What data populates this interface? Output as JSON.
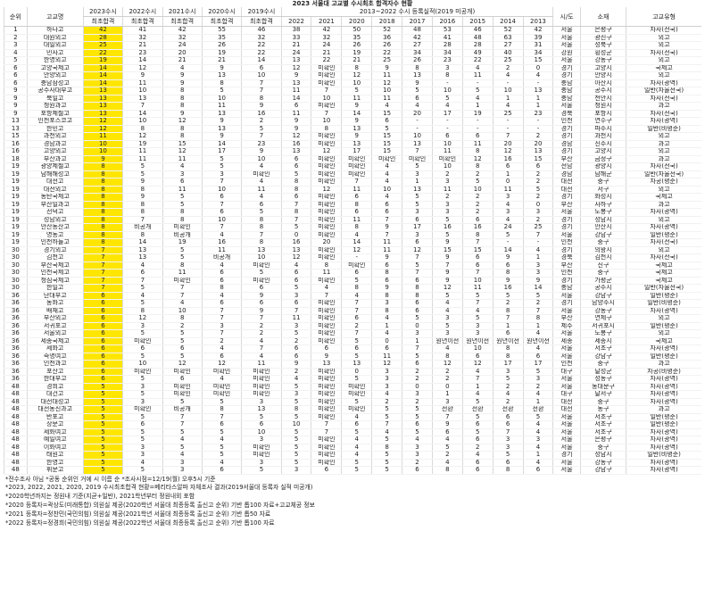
{
  "title": "2023 서울대 고교별 수시최초 합격자수 현황",
  "headers": {
    "rank": "순위",
    "school": "고교명",
    "y2023": [
      "2023수시",
      "최초합격"
    ],
    "y2022": [
      "2022수시",
      "최초합격"
    ],
    "y2021": [
      "2021수시",
      "최초합격"
    ],
    "y2020": [
      "2020수시",
      "최초합격"
    ],
    "y2019": [
      "2019수시",
      "최초합격"
    ],
    "reg_group": "2013~2022 수시 등록실적(2019 미공개)",
    "reg_years": [
      "2022",
      "2021",
      "2020",
      "2018",
      "2017",
      "2016",
      "2015",
      "2014",
      "2013"
    ],
    "region": "시/도",
    "location": "소재",
    "type": "고교유형"
  },
  "highlight_color": "#ffe600",
  "rows": [
    [
      "1",
      "하나고",
      "42",
      "41",
      "42",
      "55",
      "46",
      "38",
      "42",
      "50",
      "52",
      "48",
      "53",
      "46",
      "52",
      "42",
      "서울",
      "은평구",
      "자사(전국)"
    ],
    [
      "2",
      "대원외고",
      "28",
      "32",
      "32",
      "35",
      "32",
      "33",
      "32",
      "35",
      "36",
      "42",
      "41",
      "48",
      "63",
      "39",
      "서울",
      "광진구",
      "외고"
    ],
    [
      "3",
      "대일외고",
      "25",
      "21",
      "24",
      "26",
      "22",
      "21",
      "24",
      "26",
      "26",
      "27",
      "28",
      "28",
      "27",
      "31",
      "서울",
      "성북구",
      "외고"
    ],
    [
      "4",
      "민사고",
      "22",
      "23",
      "20",
      "19",
      "22",
      "24",
      "21",
      "19",
      "22",
      "34",
      "34",
      "49",
      "40",
      "34",
      "강원",
      "횡성군",
      "자사(전국)"
    ],
    [
      "5",
      "한영외고",
      "19",
      "14",
      "21",
      "21",
      "14",
      "13",
      "22",
      "21",
      "25",
      "26",
      "23",
      "22",
      "25",
      "15",
      "서울",
      "강동구",
      "외고"
    ],
    [
      "6",
      "고양국제고",
      "14",
      "12",
      "4",
      "9",
      "6",
      "12",
      "미확인",
      "8",
      "9",
      "8",
      "3",
      "4",
      "2",
      "0",
      "경기",
      "고양시",
      "국제고"
    ],
    [
      "6",
      "안양외고",
      "14",
      "9",
      "9",
      "13",
      "10",
      "9",
      "미확인",
      "12",
      "11",
      "13",
      "8",
      "11",
      "4",
      "4",
      "경기",
      "안양시",
      "외고"
    ],
    [
      "6",
      "충남삼성고",
      "14",
      "11",
      "9",
      "8",
      "7",
      "13",
      "미확인",
      "10",
      "12",
      "9",
      "-",
      "-",
      "-",
      "-",
      "충남",
      "아산시",
      "자사(광역)"
    ],
    [
      "9",
      "공주사대부고",
      "13",
      "10",
      "8",
      "5",
      "7",
      "11",
      "7",
      "5",
      "10",
      "5",
      "10",
      "5",
      "10",
      "13",
      "충남",
      "공주시",
      "일반(자율전국)"
    ],
    [
      "9",
      "북일고",
      "13",
      "13",
      "8",
      "10",
      "8",
      "14",
      "10",
      "11",
      "11",
      "6",
      "5",
      "4",
      "1",
      "1",
      "충남",
      "천안시",
      "자사(전국)"
    ],
    [
      "9",
      "청원과고",
      "13",
      "7",
      "8",
      "11",
      "9",
      "6",
      "미확인",
      "9",
      "4",
      "4",
      "4",
      "1",
      "4",
      "1",
      "서울",
      "청원시",
      "과고"
    ],
    [
      "9",
      "포항제철고",
      "13",
      "14",
      "9",
      "13",
      "16",
      "11",
      "7",
      "14",
      "15",
      "20",
      "17",
      "19",
      "25",
      "23",
      "경북",
      "포항시",
      "자사(전국)"
    ],
    [
      "13",
      "인천포스코고",
      "12",
      "10",
      "12",
      "9",
      "2",
      "9",
      "10",
      "9",
      "6",
      "-",
      "-",
      "-",
      "-",
      "-",
      "인천",
      "연수구",
      "자사(광역)"
    ],
    [
      "13",
      "한민고",
      "12",
      "8",
      "8",
      "13",
      "5",
      "9",
      "8",
      "13",
      "5",
      "-",
      "-",
      "-",
      "-",
      "-",
      "경기",
      "파주시",
      "일반(비평준)"
    ],
    [
      "15",
      "과천외고",
      "11",
      "12",
      "8",
      "9",
      "7",
      "12",
      "미확인",
      "9",
      "15",
      "10",
      "6",
      "6",
      "7",
      "2",
      "경기",
      "과천시",
      "외고"
    ],
    [
      "16",
      "경남과고",
      "10",
      "19",
      "15",
      "14",
      "23",
      "16",
      "미확인",
      "13",
      "15",
      "13",
      "10",
      "11",
      "20",
      "20",
      "경남",
      "진주시",
      "과고"
    ],
    [
      "16",
      "고양외고",
      "10",
      "11",
      "12",
      "17",
      "9",
      "13",
      "12",
      "17",
      "15",
      "7",
      "11",
      "8",
      "12",
      "13",
      "경기",
      "고양시",
      "외고"
    ],
    [
      "18",
      "부산과고",
      "9",
      "11",
      "11",
      "5",
      "10",
      "6",
      "미확인",
      "미확인",
      "미확인",
      "미확인",
      "미확인",
      "12",
      "16",
      "15",
      "부산",
      "금정구",
      "과고"
    ],
    [
      "19",
      "광양제철고",
      "8",
      "5",
      "4",
      "5",
      "4",
      "6",
      "미확인",
      "미확인",
      "4",
      "5",
      "10",
      "8",
      "6",
      "6",
      "전남",
      "광양시",
      "자사(전국)"
    ],
    [
      "19",
      "남해해성고",
      "8",
      "5",
      "3",
      "3",
      "미확인",
      "5",
      "미확인",
      "미확인",
      "4",
      "3",
      "2",
      "2",
      "1",
      "2",
      "경남",
      "남해군",
      "일반(자율전국)"
    ],
    [
      "19",
      "대전고",
      "8",
      "9",
      "6",
      "7",
      "4",
      "8",
      "미확인",
      "7",
      "4",
      "1",
      "3",
      "5",
      "0",
      "2",
      "대전",
      "중구",
      "자공(평준)"
    ],
    [
      "19",
      "대전외고",
      "8",
      "8",
      "11",
      "10",
      "11",
      "8",
      "12",
      "11",
      "10",
      "13",
      "11",
      "10",
      "11",
      "5",
      "대전",
      "서구",
      "외고"
    ],
    [
      "19",
      "동탄국제고",
      "8",
      "9",
      "5",
      "6",
      "4",
      "6",
      "미확인",
      "6",
      "4",
      "5",
      "2",
      "2",
      "3",
      "2",
      "경기",
      "화성시",
      "국제고"
    ],
    [
      "19",
      "부산일과고",
      "8",
      "8",
      "5",
      "7",
      "6",
      "7",
      "미확인",
      "8",
      "6",
      "5",
      "3",
      "2",
      "4",
      "0",
      "부산",
      "사하구",
      "과고"
    ],
    [
      "19",
      "선덕고",
      "8",
      "8",
      "8",
      "6",
      "5",
      "8",
      "미확인",
      "6",
      "6",
      "3",
      "3",
      "2",
      "3",
      "3",
      "서울",
      "도봉구",
      "자사(광역)"
    ],
    [
      "19",
      "성남외고",
      "8",
      "7",
      "8",
      "10",
      "8",
      "7",
      "미확인",
      "11",
      "7",
      "6",
      "5",
      "6",
      "4",
      "2",
      "경기",
      "성남시",
      "외고"
    ],
    [
      "19",
      "안산동산고",
      "8",
      "비공개",
      "미확인",
      "7",
      "8",
      "5",
      "미확인",
      "8",
      "9",
      "17",
      "16",
      "16",
      "24",
      "25",
      "경기",
      "안산시",
      "자사(광역)"
    ],
    [
      "19",
      "영동고",
      "8",
      "8",
      "비공개",
      "4",
      "7",
      "0",
      "미확인",
      "4",
      "7",
      "3",
      "5",
      "8",
      "5",
      "7",
      "서울",
      "강남구",
      "일반(평준)"
    ],
    [
      "19",
      "인천하늘고",
      "8",
      "14",
      "19",
      "16",
      "8",
      "16",
      "20",
      "14",
      "11",
      "6",
      "9",
      "7",
      "-",
      "-",
      "인천",
      "중구",
      "자사(전국)"
    ],
    [
      "30",
      "경기외고",
      "7",
      "13",
      "5",
      "11",
      "13",
      "13",
      "미확인",
      "12",
      "11",
      "12",
      "15",
      "15",
      "14",
      "4",
      "경기",
      "의왕시",
      "외고"
    ],
    [
      "30",
      "김천고",
      "7",
      "13",
      "5",
      "비공개",
      "10",
      "12",
      "미확인",
      "-",
      "9",
      "7",
      "9",
      "6",
      "9",
      "1",
      "경북",
      "김천시",
      "자사(전국)"
    ],
    [
      "30",
      "부산국제고",
      "7",
      "4",
      "8",
      "4",
      "미확인",
      "4",
      "8",
      "미확인",
      "6",
      "5",
      "7",
      "6",
      "6",
      "3",
      "부산",
      "진구",
      "국제고"
    ],
    [
      "30",
      "인천국제고",
      "7",
      "6",
      "11",
      "6",
      "5",
      "6",
      "11",
      "6",
      "8",
      "7",
      "9",
      "7",
      "8",
      "3",
      "인천",
      "중구",
      "국제고"
    ],
    [
      "30",
      "청심국제고",
      "7",
      "7",
      "미확인",
      "6",
      "미확인",
      "6",
      "미확인",
      "5",
      "6",
      "6",
      "9",
      "10",
      "9",
      "9",
      "경기",
      "가평군",
      "국제고"
    ],
    [
      "30",
      "한일고",
      "7",
      "5",
      "7",
      "8",
      "6",
      "5",
      "4",
      "8",
      "9",
      "8",
      "12",
      "11",
      "16",
      "14",
      "충남",
      "공주시",
      "일반(자율전국)"
    ],
    [
      "36",
      "단대부고",
      "6",
      "4",
      "7",
      "4",
      "9",
      "3",
      "7",
      "4",
      "8",
      "8",
      "5",
      "5",
      "5",
      "5",
      "서울",
      "강남구",
      "일반(평준)"
    ],
    [
      "36",
      "동화고",
      "6",
      "5",
      "4",
      "6",
      "6",
      "6",
      "미확인",
      "7",
      "3",
      "6",
      "4",
      "7",
      "2",
      "2",
      "경기",
      "남양주시",
      "일반(비평준)"
    ],
    [
      "36",
      "배재고",
      "6",
      "8",
      "10",
      "7",
      "9",
      "7",
      "미확인",
      "7",
      "8",
      "6",
      "4",
      "4",
      "8",
      "7",
      "서울",
      "강동구",
      "자사(광역)"
    ],
    [
      "36",
      "부산외고",
      "6",
      "12",
      "8",
      "7",
      "7",
      "11",
      "미확인",
      "6",
      "4",
      "5",
      "3",
      "5",
      "7",
      "8",
      "부산",
      "연제구",
      "외고"
    ],
    [
      "36",
      "서귀포고",
      "6",
      "3",
      "2",
      "3",
      "2",
      "3",
      "미확인",
      "2",
      "1",
      "0",
      "5",
      "3",
      "1",
      "1",
      "제주",
      "서귀포시",
      "일반(평준)"
    ],
    [
      "36",
      "서울외고",
      "6",
      "5",
      "5",
      "7",
      "2",
      "5",
      "미확인",
      "7",
      "4",
      "3",
      "3",
      "3",
      "6",
      "4",
      "서울",
      "도봉구",
      "외고"
    ],
    [
      "36",
      "세종국제고",
      "6",
      "미확인",
      "5",
      "2",
      "4",
      "2",
      "미확인",
      "5",
      "0",
      "1",
      "원년이전",
      "원년이전",
      "원년이전",
      "원년이전",
      "세종",
      "세종시",
      "국제고"
    ],
    [
      "36",
      "세화고",
      "6",
      "6",
      "6",
      "4",
      "7",
      "6",
      "6",
      "6",
      "6",
      "7",
      "4",
      "10",
      "8",
      "4",
      "서울",
      "서초구",
      "자사(광역)"
    ],
    [
      "36",
      "숙명여고",
      "6",
      "5",
      "5",
      "6",
      "4",
      "6",
      "9",
      "5",
      "11",
      "5",
      "8",
      "6",
      "8",
      "6",
      "서울",
      "강남구",
      "일반(평준)"
    ],
    [
      "36",
      "인천과고",
      "6",
      "10",
      "12",
      "12",
      "11",
      "9",
      "13",
      "13",
      "12",
      "6",
      "12",
      "12",
      "17",
      "17",
      "인천",
      "중구",
      "과고"
    ],
    [
      "36",
      "포산고",
      "6",
      "미확인",
      "미확인",
      "미확인",
      "미확인",
      "2",
      "미확인",
      "0",
      "3",
      "2",
      "2",
      "4",
      "3",
      "5",
      "대구",
      "달성군",
      "자공(비평준)"
    ],
    [
      "36",
      "한대부고",
      "6",
      "5",
      "6",
      "4",
      "미확인",
      "4",
      "미확인",
      "5",
      "3",
      "2",
      "2",
      "7",
      "5",
      "3",
      "서울",
      "성동구",
      "자사(광역)"
    ],
    [
      "48",
      "경희고",
      "5",
      "3",
      "미확인",
      "미확인",
      "미확인",
      "5",
      "미확인",
      "미확인",
      "3",
      "0",
      "0",
      "1",
      "2",
      "2",
      "서울",
      "동대문구",
      "자사(광역)"
    ],
    [
      "48",
      "대건고",
      "5",
      "5",
      "미확인",
      "미확인",
      "미확인",
      "3",
      "미확인",
      "미확인",
      "4",
      "3",
      "1",
      "4",
      "4",
      "4",
      "대구",
      "달서구",
      "자사(광역)"
    ],
    [
      "48",
      "대전대성고",
      "5",
      "3",
      "5",
      "5",
      "3",
      "5",
      "미확인",
      "5",
      "2",
      "2",
      "3",
      "5",
      "2",
      "1",
      "대전",
      "중구",
      "자사(광역)"
    ],
    [
      "48",
      "대전동신과고",
      "5",
      "미확인",
      "비공개",
      "8",
      "13",
      "8",
      "미확인",
      "미확인",
      "5",
      "5",
      "전환",
      "전환",
      "전환",
      "전환",
      "대전",
      "동구",
      "과고"
    ],
    [
      "48",
      "반포고",
      "5",
      "5",
      "7",
      "7",
      "5",
      "5",
      "미확인",
      "4",
      "5",
      "5",
      "7",
      "5",
      "6",
      "5",
      "서울",
      "서초구",
      "일반(평준)"
    ],
    [
      "48",
      "상문고",
      "5",
      "6",
      "7",
      "6",
      "6",
      "10",
      "7",
      "6",
      "7",
      "6",
      "9",
      "6",
      "6",
      "4",
      "서울",
      "서초구",
      "일반(평준)"
    ],
    [
      "48",
      "세화여고",
      "5",
      "5",
      "5",
      "5",
      "10",
      "5",
      "7",
      "5",
      "4",
      "5",
      "6",
      "5",
      "7",
      "4",
      "서울",
      "서초구",
      "자사(광역)"
    ],
    [
      "48",
      "예일여고",
      "5",
      "5",
      "4",
      "4",
      "3",
      "5",
      "미확인",
      "4",
      "5",
      "4",
      "4",
      "6",
      "3",
      "3",
      "서울",
      "은평구",
      "자사(광역)"
    ],
    [
      "48",
      "이화여고",
      "5",
      "3",
      "5",
      "5",
      "미확인",
      "5",
      "미확인",
      "4",
      "8",
      "3",
      "5",
      "2",
      "3",
      "4",
      "서울",
      "중구",
      "자사(광역)"
    ],
    [
      "48",
      "태원고",
      "5",
      "3",
      "4",
      "5",
      "미확인",
      "5",
      "미확인",
      "4",
      "5",
      "3",
      "2",
      "4",
      "5",
      "1",
      "경기",
      "성남시",
      "일반(비평준)"
    ],
    [
      "48",
      "한영고",
      "5",
      "4",
      "3",
      "4",
      "3",
      "5",
      "미확인",
      "5",
      "5",
      "2",
      "4",
      "6",
      "6",
      "4",
      "서울",
      "강동구",
      "자사(광역)"
    ],
    [
      "48",
      "휘문고",
      "5",
      "5",
      "3",
      "6",
      "5",
      "3",
      "6",
      "5",
      "5",
      "6",
      "8",
      "6",
      "8",
      "6",
      "서울",
      "강남구",
      "자사(광역)"
    ]
  ],
  "notes": [
    "*전수조사 아님  *공동 순위인 거에 시 이름 순  *조사시점=12/19(월) 오후5시 기준",
    "*2023, 2022, 2021, 2020, 2019 수시최초합격 현황=베리타스알파 자체조사 결과(2019서울대 등록자 실적 미공개)",
    "*2020학년까지는 정원내 기준(지균+일반), 2021학년부터 정원내외 포함",
    "*2020 등록자=곽상도(미래통합) 의원실 제공(2020학년 서울대 최종등록 출신고 순위) 기반 톱100 자료+고교체공 정보",
    "*2021 등록자=정찬민(국민의힘) 의원실 제공(2021학년 서울대 최종등록 출신고 순위) 기반 톱50 자료",
    "*2022 등록자=정경희(국민의힘) 의원실 제공(2022학년 서울대 최종등록 출신고 순위) 기반 톱100 자료"
  ]
}
